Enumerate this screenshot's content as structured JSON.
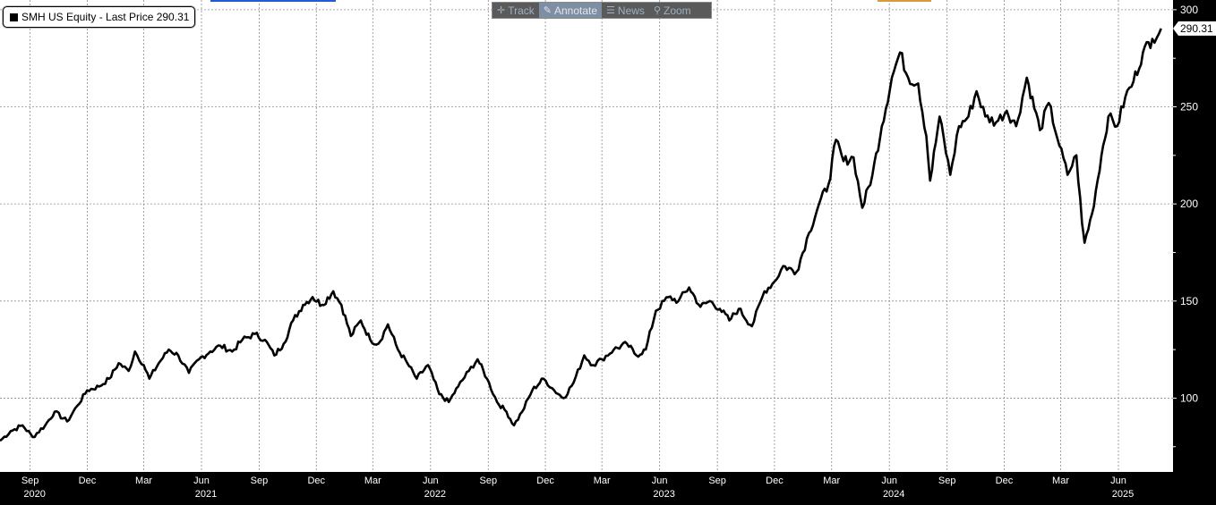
{
  "toolbar": {
    "track": "Track",
    "annotate": "Annotate",
    "news": "News",
    "zoom": "Zoom"
  },
  "legend": {
    "text": "SMH US Equity - Last Price 290.31"
  },
  "chart_data": {
    "type": "line",
    "ylim": [
      62,
      305
    ],
    "yticks": [
      100,
      150,
      200,
      250,
      300
    ],
    "last_value": 290.31,
    "grid": true,
    "legend_position": "top-left",
    "x_month_labels": [
      {
        "date": "2020-09-01",
        "label": "Sep",
        "year": "2020"
      },
      {
        "date": "2020-12-01",
        "label": "Dec"
      },
      {
        "date": "2021-03-01",
        "label": "Mar"
      },
      {
        "date": "2021-06-01",
        "label": "Jun",
        "year": "2021"
      },
      {
        "date": "2021-09-01",
        "label": "Sep"
      },
      {
        "date": "2021-12-01",
        "label": "Dec"
      },
      {
        "date": "2022-03-01",
        "label": "Mar"
      },
      {
        "date": "2022-06-01",
        "label": "Jun",
        "year": "2022"
      },
      {
        "date": "2022-09-01",
        "label": "Sep"
      },
      {
        "date": "2022-12-01",
        "label": "Dec"
      },
      {
        "date": "2023-03-01",
        "label": "Mar"
      },
      {
        "date": "2023-06-01",
        "label": "Jun",
        "year": "2023"
      },
      {
        "date": "2023-09-01",
        "label": "Sep"
      },
      {
        "date": "2023-12-01",
        "label": "Dec"
      },
      {
        "date": "2024-03-01",
        "label": "Mar"
      },
      {
        "date": "2024-06-01",
        "label": "Jun",
        "year": "2024"
      },
      {
        "date": "2024-09-01",
        "label": "Sep"
      },
      {
        "date": "2024-12-01",
        "label": "Dec"
      },
      {
        "date": "2025-03-01",
        "label": "Mar"
      },
      {
        "date": "2025-06-01",
        "label": "Jun",
        "year": "2025"
      }
    ],
    "xlim": [
      "2020-07-15",
      "2025-08-27"
    ],
    "series": [
      {
        "color": "#000000",
        "points": [
          [
            "2020-07-15",
            78
          ],
          [
            "2020-08-01",
            83
          ],
          [
            "2020-08-20",
            86
          ],
          [
            "2020-09-05",
            80
          ],
          [
            "2020-09-25",
            86
          ],
          [
            "2020-10-10",
            93
          ],
          [
            "2020-10-30",
            88
          ],
          [
            "2020-11-15",
            96
          ],
          [
            "2020-12-01",
            104
          ],
          [
            "2020-12-20",
            106
          ],
          [
            "2021-01-05",
            110
          ],
          [
            "2021-01-20",
            118
          ],
          [
            "2021-02-05",
            114
          ],
          [
            "2021-02-15",
            124
          ],
          [
            "2021-03-01",
            117
          ],
          [
            "2021-03-10",
            110
          ],
          [
            "2021-03-25",
            118
          ],
          [
            "2021-04-10",
            125
          ],
          [
            "2021-04-25",
            122
          ],
          [
            "2021-05-12",
            113
          ],
          [
            "2021-05-28",
            120
          ],
          [
            "2021-06-15",
            124
          ],
          [
            "2021-07-01",
            127
          ],
          [
            "2021-07-20",
            124
          ],
          [
            "2021-08-05",
            130
          ],
          [
            "2021-08-25",
            133
          ],
          [
            "2021-09-10",
            130
          ],
          [
            "2021-09-25",
            122
          ],
          [
            "2021-10-10",
            128
          ],
          [
            "2021-10-25",
            140
          ],
          [
            "2021-11-10",
            148
          ],
          [
            "2021-11-25",
            152
          ],
          [
            "2021-12-10",
            148
          ],
          [
            "2021-12-28",
            155
          ],
          [
            "2022-01-10",
            148
          ],
          [
            "2022-01-25",
            132
          ],
          [
            "2022-02-10",
            140
          ],
          [
            "2022-02-25",
            130
          ],
          [
            "2022-03-10",
            128
          ],
          [
            "2022-03-25",
            138
          ],
          [
            "2022-04-10",
            125
          ],
          [
            "2022-04-25",
            118
          ],
          [
            "2022-05-10",
            110
          ],
          [
            "2022-05-28",
            117
          ],
          [
            "2022-06-15",
            102
          ],
          [
            "2022-06-30",
            98
          ],
          [
            "2022-07-15",
            106
          ],
          [
            "2022-08-01",
            114
          ],
          [
            "2022-08-15",
            120
          ],
          [
            "2022-08-30",
            110
          ],
          [
            "2022-09-15",
            98
          ],
          [
            "2022-09-30",
            93
          ],
          [
            "2022-10-12",
            86
          ],
          [
            "2022-10-25",
            93
          ],
          [
            "2022-11-10",
            104
          ],
          [
            "2022-11-28",
            110
          ],
          [
            "2022-12-15",
            104
          ],
          [
            "2022-12-30",
            100
          ],
          [
            "2023-01-15",
            108
          ],
          [
            "2023-02-01",
            122
          ],
          [
            "2023-02-15",
            117
          ],
          [
            "2023-03-01",
            120
          ],
          [
            "2023-03-20",
            125
          ],
          [
            "2023-04-10",
            128
          ],
          [
            "2023-04-25",
            122
          ],
          [
            "2023-05-10",
            125
          ],
          [
            "2023-05-26",
            145
          ],
          [
            "2023-06-15",
            152
          ],
          [
            "2023-07-01",
            150
          ],
          [
            "2023-07-18",
            157
          ],
          [
            "2023-08-05",
            147
          ],
          [
            "2023-08-20",
            150
          ],
          [
            "2023-09-05",
            146
          ],
          [
            "2023-09-20",
            140
          ],
          [
            "2023-10-05",
            146
          ],
          [
            "2023-10-26",
            137
          ],
          [
            "2023-11-15",
            155
          ],
          [
            "2023-12-01",
            160
          ],
          [
            "2023-12-15",
            168
          ],
          [
            "2024-01-05",
            165
          ],
          [
            "2024-01-25",
            185
          ],
          [
            "2024-02-10",
            200
          ],
          [
            "2024-02-25",
            210
          ],
          [
            "2024-03-08",
            233
          ],
          [
            "2024-03-20",
            222
          ],
          [
            "2024-04-05",
            224
          ],
          [
            "2024-04-19",
            198
          ],
          [
            "2024-05-05",
            215
          ],
          [
            "2024-05-20",
            240
          ],
          [
            "2024-06-05",
            265
          ],
          [
            "2024-06-18",
            278
          ],
          [
            "2024-07-01",
            265
          ],
          [
            "2024-07-17",
            262
          ],
          [
            "2024-07-30",
            235
          ],
          [
            "2024-08-05",
            212
          ],
          [
            "2024-08-20",
            245
          ],
          [
            "2024-09-06",
            215
          ],
          [
            "2024-09-20",
            240
          ],
          [
            "2024-10-05",
            245
          ],
          [
            "2024-10-18",
            258
          ],
          [
            "2024-11-01",
            245
          ],
          [
            "2024-11-18",
            242
          ],
          [
            "2024-12-05",
            248
          ],
          [
            "2024-12-20",
            240
          ],
          [
            "2025-01-06",
            265
          ],
          [
            "2025-01-27",
            238
          ],
          [
            "2025-02-10",
            252
          ],
          [
            "2025-02-27",
            230
          ],
          [
            "2025-03-12",
            215
          ],
          [
            "2025-03-26",
            225
          ],
          [
            "2025-04-04",
            190
          ],
          [
            "2025-04-08",
            180
          ],
          [
            "2025-04-20",
            195
          ],
          [
            "2025-05-05",
            225
          ],
          [
            "2025-05-16",
            245
          ],
          [
            "2025-05-30",
            240
          ],
          [
            "2025-06-12",
            255
          ],
          [
            "2025-06-25",
            263
          ],
          [
            "2025-07-10",
            278
          ],
          [
            "2025-07-25",
            285
          ],
          [
            "2025-08-08",
            290.31
          ]
        ]
      }
    ]
  }
}
